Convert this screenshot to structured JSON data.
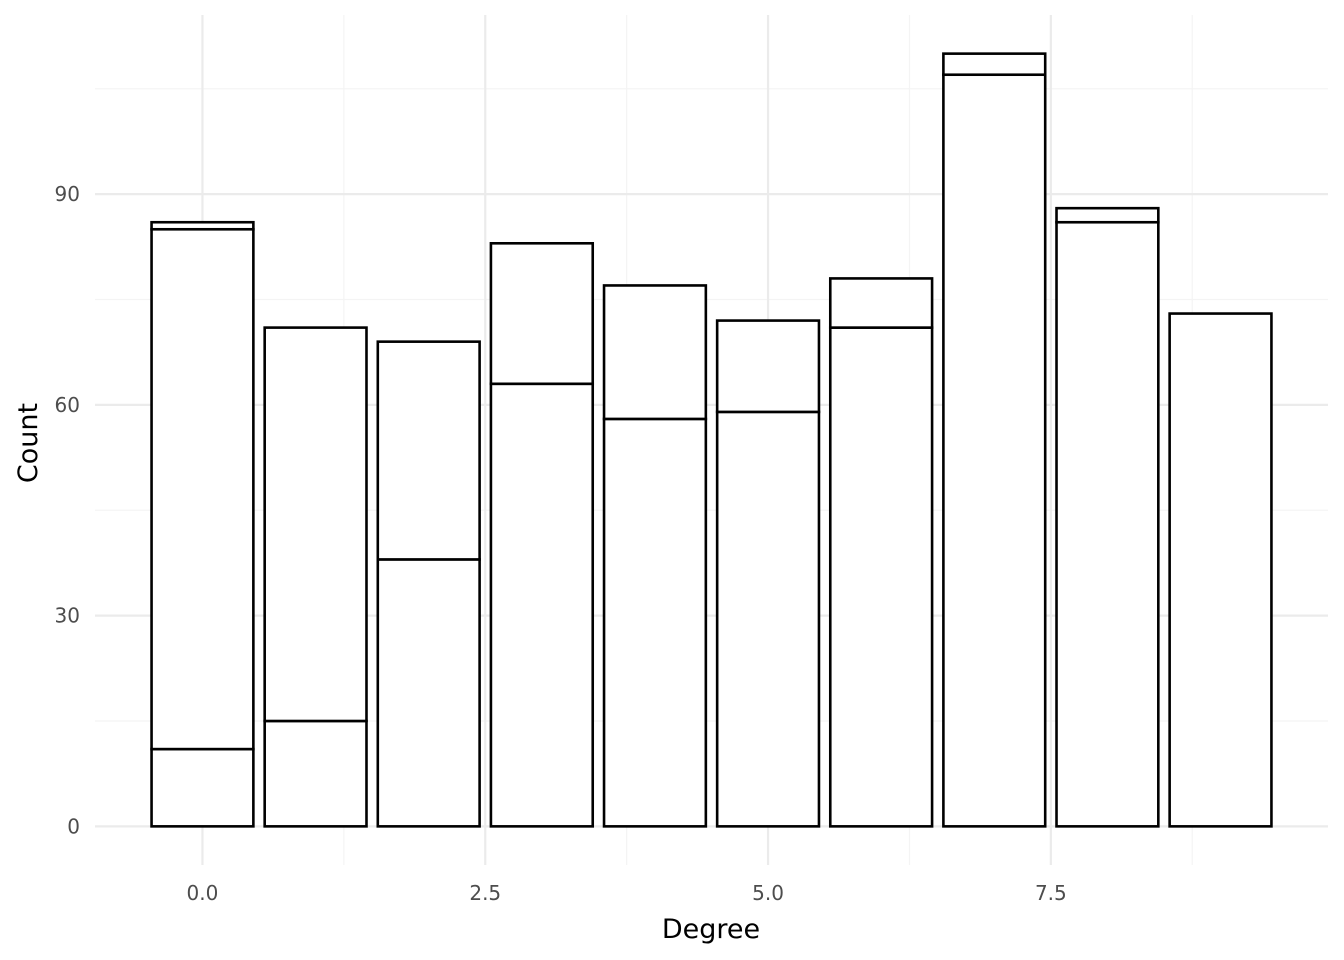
{
  "chart_data": {
    "type": "bar",
    "stacked": true,
    "title": "",
    "xlabel": "Degree",
    "ylabel": "Count",
    "x": [
      0,
      1,
      2,
      3,
      4,
      5,
      6,
      7,
      8,
      9
    ],
    "segment_tops": [
      [
        11,
        85,
        86
      ],
      [
        15,
        71
      ],
      [
        38,
        69
      ],
      [
        63,
        83
      ],
      [
        58,
        77
      ],
      [
        59,
        72
      ],
      [
        71,
        78
      ],
      [
        107,
        110
      ],
      [
        86,
        88
      ],
      [
        73
      ]
    ],
    "x_ticks": [
      0.0,
      2.5,
      5.0,
      7.5
    ],
    "x_tick_labels": [
      "0.0",
      "2.5",
      "5.0",
      "7.5"
    ],
    "y_ticks": [
      0,
      30,
      60,
      90
    ],
    "y_tick_labels": [
      "0",
      "30",
      "60",
      "90"
    ],
    "xlim": [
      -0.95,
      9.95
    ],
    "ylim": [
      -5.5,
      115.5
    ],
    "grid": true,
    "bar_fill": "#ffffff",
    "bar_outline": "#000000",
    "grid_major_color": "#ebebeb",
    "grid_minor_color": "#f4f4f4"
  }
}
